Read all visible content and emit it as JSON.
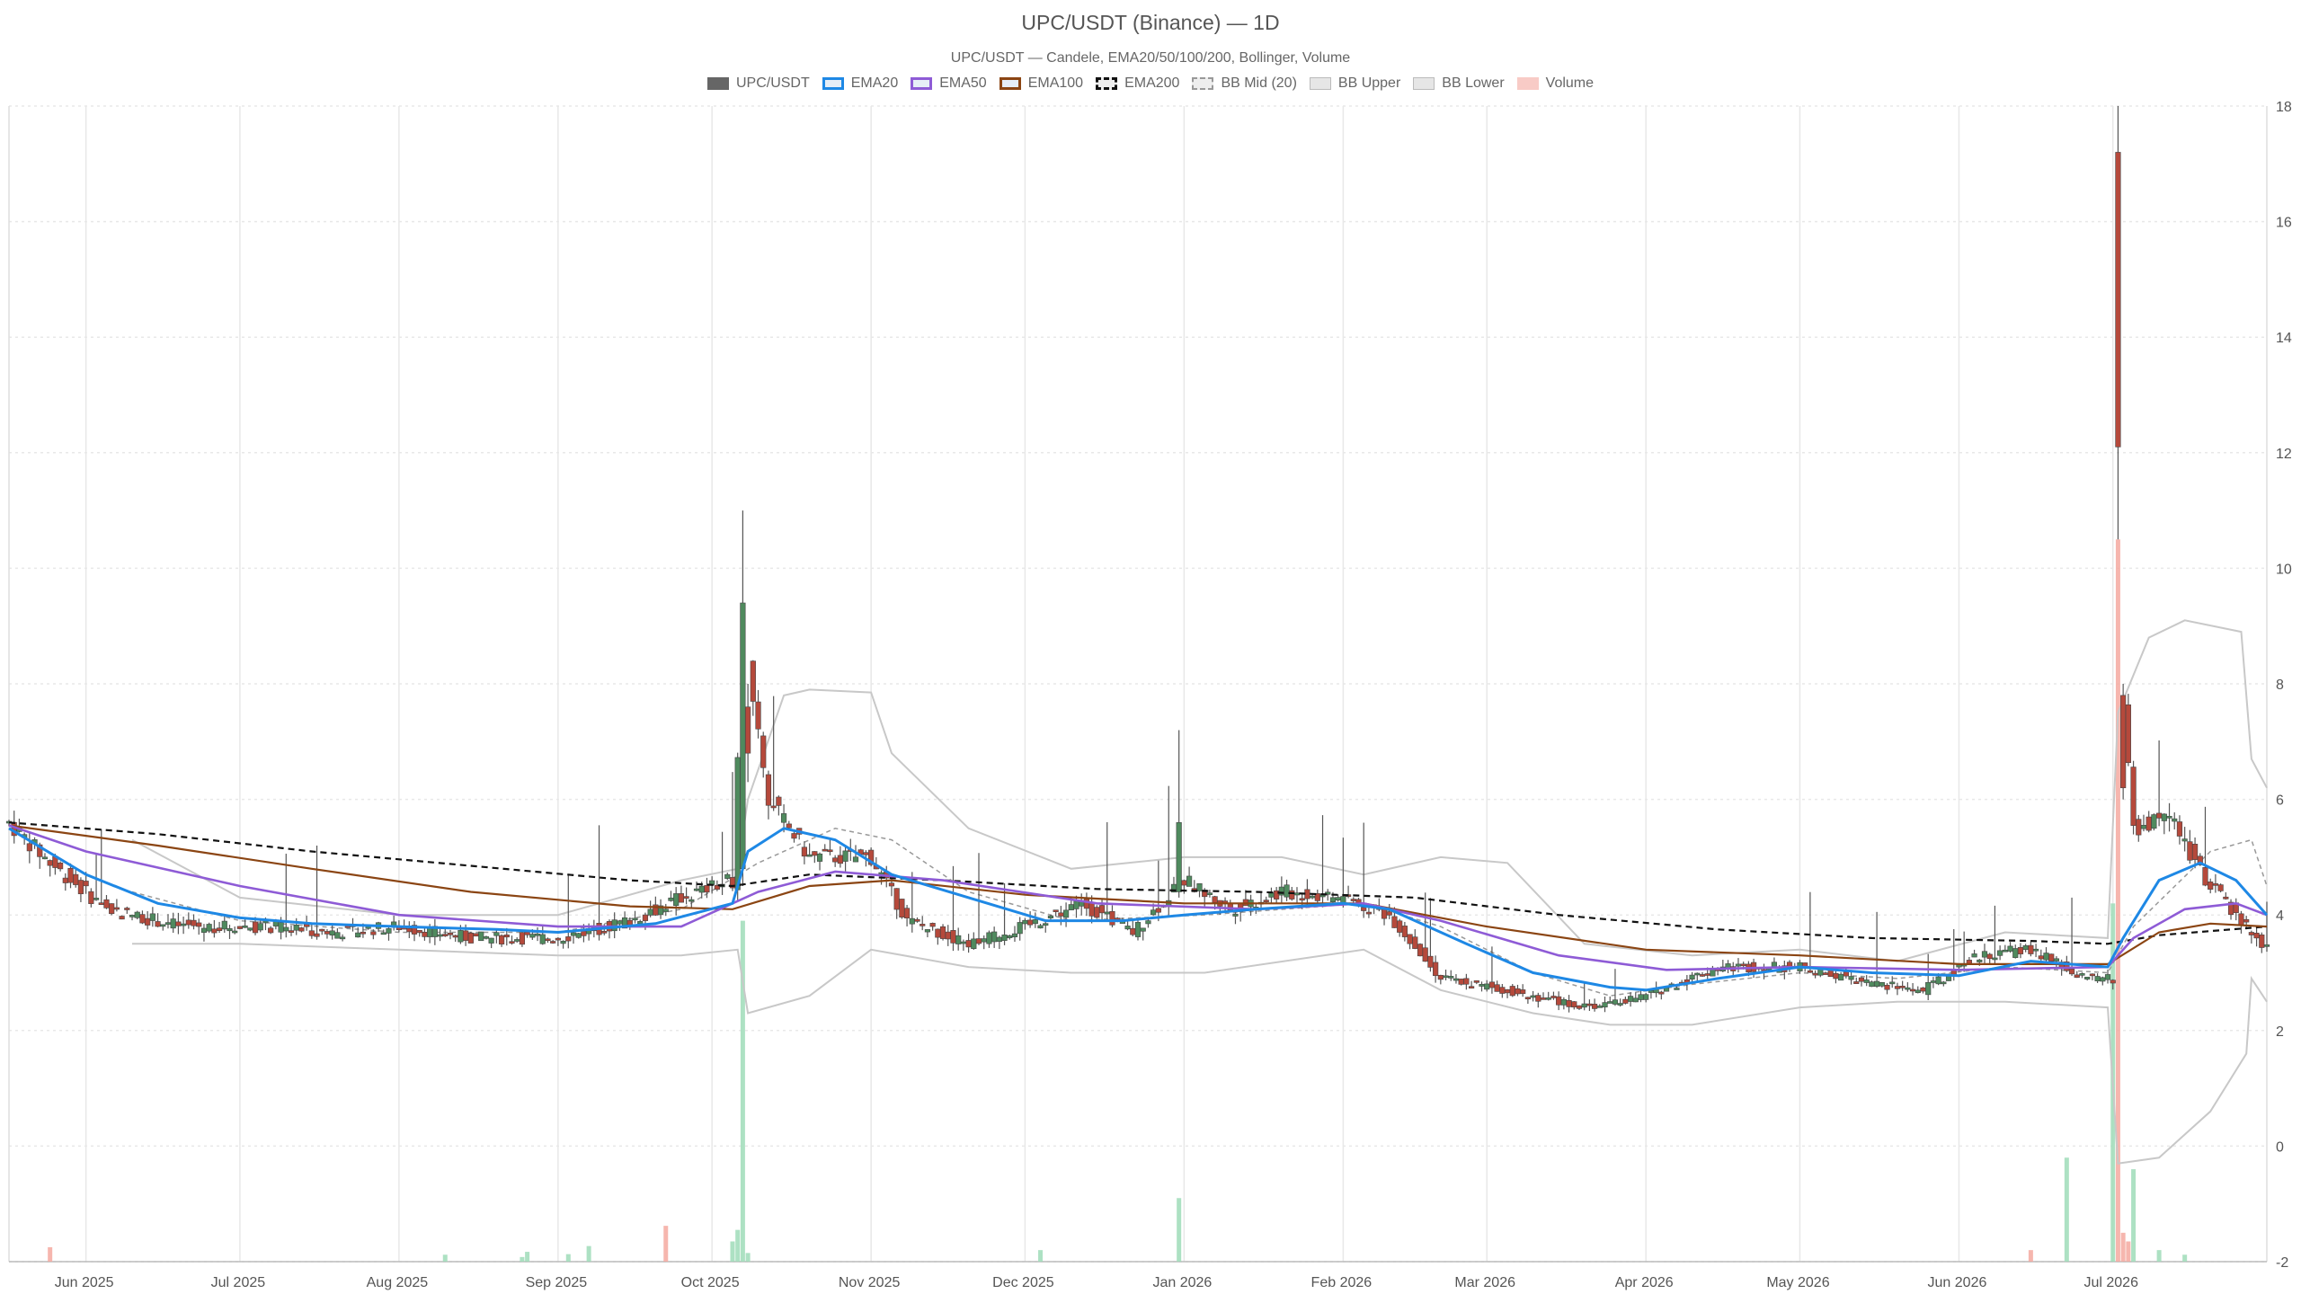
{
  "chart_data": {
    "type": "candlestick",
    "title": "UPC/USDT (Binance) — 1D",
    "subtitle": "UPC/USDT — Candele, EMA20/50/100/200, Bollinger, Volume",
    "x_axis": {
      "type": "date",
      "tick_labels": [
        "Jun 2025",
        "Jul 2025",
        "Aug 2025",
        "Sep 2025",
        "Oct 2025",
        "Nov 2025",
        "Dec 2025",
        "Jan 2026",
        "Feb 2026",
        "Mar 2026",
        "Apr 2026",
        "May 2026",
        "Jun 2026",
        "Jul 2026"
      ],
      "tick_dates": [
        "2025-06-01",
        "2025-07-01",
        "2025-08-01",
        "2025-09-01",
        "2025-10-01",
        "2025-11-01",
        "2025-12-01",
        "2026-01-01",
        "2026-02-01",
        "2026-03-01",
        "2026-04-01",
        "2026-05-01",
        "2026-06-01",
        "2026-07-01"
      ],
      "range": [
        "2025-05-17",
        "2026-07-31"
      ]
    },
    "y_axis": {
      "position": "right",
      "range": [
        -2,
        18
      ],
      "ticks": [
        -2,
        0,
        2,
        4,
        6,
        8,
        10,
        12,
        14,
        16,
        18
      ],
      "grid": true
    },
    "legend": {
      "placement": "top-center",
      "items": [
        {
          "label": "UPC/USDT",
          "kind": "candle",
          "color": "#666666"
        },
        {
          "label": "EMA20",
          "kind": "line",
          "color": "#1e88e5"
        },
        {
          "label": "EMA50",
          "kind": "line",
          "color": "#8e5bd6"
        },
        {
          "label": "EMA100",
          "kind": "line",
          "color": "#8b4513"
        },
        {
          "label": "EMA200",
          "kind": "dashed",
          "color": "#111111"
        },
        {
          "label": "BB Mid (20)",
          "kind": "dotted",
          "color": "#999999"
        },
        {
          "label": "BB Upper",
          "kind": "band",
          "color": "#bbbbbb"
        },
        {
          "label": "BB Lower",
          "kind": "band",
          "color": "#bbbbbb"
        },
        {
          "label": "Volume",
          "kind": "bar",
          "color": "#f4a9a0"
        }
      ]
    },
    "colors": {
      "candle_up": "#4f8a5e",
      "candle_down": "#b5493b",
      "wick": "#555555",
      "ema20": "#1e88e5",
      "ema50": "#8e5bd6",
      "ema100": "#8b4513",
      "ema200": "#111111",
      "bb_mid": "#999999",
      "bb_band": "#c8c8c8",
      "volume_up": "#9fdcb8",
      "volume_down": "#f4a9a0",
      "grid": "#e8e8e8"
    },
    "price_points": [
      [
        "2025-05-17",
        5.6
      ],
      [
        "2025-05-25",
        4.9
      ],
      [
        "2025-06-05",
        4.1
      ],
      [
        "2025-06-20",
        3.8
      ],
      [
        "2025-07-05",
        3.8
      ],
      [
        "2025-07-20",
        3.7
      ],
      [
        "2025-08-01",
        3.8
      ],
      [
        "2025-08-15",
        3.6
      ],
      [
        "2025-09-01",
        3.6
      ],
      [
        "2025-09-15",
        3.9
      ],
      [
        "2025-09-25",
        4.3
      ],
      [
        "2025-10-05",
        4.6
      ],
      [
        "2025-10-07",
        9.0
      ],
      [
        "2025-10-12",
        6.0
      ],
      [
        "2025-10-20",
        5.0
      ],
      [
        "2025-11-01",
        5.0
      ],
      [
        "2025-11-08",
        3.9
      ],
      [
        "2025-11-20",
        3.5
      ],
      [
        "2025-12-01",
        3.8
      ],
      [
        "2025-12-12",
        4.2
      ],
      [
        "2025-12-22",
        3.7
      ],
      [
        "2026-01-01",
        4.6
      ],
      [
        "2026-01-10",
        4.1
      ],
      [
        "2026-01-20",
        4.4
      ],
      [
        "2026-02-01",
        4.3
      ],
      [
        "2026-02-10",
        4.0
      ],
      [
        "2026-02-20",
        2.9
      ],
      [
        "2026-03-05",
        2.7
      ],
      [
        "2026-03-20",
        2.4
      ],
      [
        "2026-04-01",
        2.6
      ],
      [
        "2026-04-15",
        3.1
      ],
      [
        "2026-05-01",
        3.1
      ],
      [
        "2026-05-15",
        2.8
      ],
      [
        "2026-05-25",
        2.7
      ],
      [
        "2026-06-05",
        3.3
      ],
      [
        "2026-06-15",
        3.4
      ],
      [
        "2026-06-25",
        2.9
      ],
      [
        "2026-07-01",
        2.9
      ],
      [
        "2026-07-02",
        12.0
      ],
      [
        "2026-07-03",
        7.5
      ],
      [
        "2026-07-05",
        5.5
      ],
      [
        "2026-07-12",
        5.7
      ],
      [
        "2026-07-20",
        4.5
      ],
      [
        "2026-07-31",
        3.4
      ]
    ],
    "notable_candles": [
      {
        "date": "2025-10-07",
        "open": 4.8,
        "high": 11.0,
        "low": 4.5,
        "close": 9.4
      },
      {
        "date": "2025-10-08",
        "open": 7.6,
        "high": 8.0,
        "low": 6.3,
        "close": 6.8
      },
      {
        "date": "2025-12-31",
        "open": 4.4,
        "high": 7.2,
        "low": 4.3,
        "close": 5.6
      },
      {
        "date": "2026-07-02",
        "open": 17.2,
        "high": 18.0,
        "low": 10.5,
        "close": 12.1
      },
      {
        "date": "2026-07-03",
        "open": 7.8,
        "high": 8.0,
        "low": 6.0,
        "close": 6.2
      }
    ],
    "ema20": [
      [
        "2025-05-17",
        5.5
      ],
      [
        "2025-06-01",
        4.7
      ],
      [
        "2025-06-15",
        4.2
      ],
      [
        "2025-07-01",
        3.95
      ],
      [
        "2025-07-15",
        3.85
      ],
      [
        "2025-08-01",
        3.8
      ],
      [
        "2025-08-20",
        3.75
      ],
      [
        "2025-09-01",
        3.7
      ],
      [
        "2025-09-20",
        3.85
      ],
      [
        "2025-10-05",
        4.2
      ],
      [
        "2025-10-08",
        5.1
      ],
      [
        "2025-10-15",
        5.5
      ],
      [
        "2025-10-25",
        5.3
      ],
      [
        "2025-11-05",
        4.7
      ],
      [
        "2025-11-20",
        4.3
      ],
      [
        "2025-12-05",
        3.9
      ],
      [
        "2025-12-20",
        3.9
      ],
      [
        "2026-01-01",
        4.0
      ],
      [
        "2026-01-15",
        4.1
      ],
      [
        "2026-02-01",
        4.2
      ],
      [
        "2026-02-10",
        4.1
      ],
      [
        "2026-02-25",
        3.5
      ],
      [
        "2026-03-10",
        3.0
      ],
      [
        "2026-03-25",
        2.75
      ],
      [
        "2026-04-01",
        2.7
      ],
      [
        "2026-04-15",
        2.9
      ],
      [
        "2026-05-01",
        3.1
      ],
      [
        "2026-05-15",
        3.0
      ],
      [
        "2026-06-01",
        2.95
      ],
      [
        "2026-06-15",
        3.2
      ],
      [
        "2026-06-30",
        3.1
      ],
      [
        "2026-07-03",
        3.6
      ],
      [
        "2026-07-10",
        4.6
      ],
      [
        "2026-07-18",
        4.9
      ],
      [
        "2026-07-25",
        4.6
      ],
      [
        "2026-07-31",
        4.0
      ]
    ],
    "ema50": [
      [
        "2025-05-17",
        5.55
      ],
      [
        "2025-06-01",
        5.1
      ],
      [
        "2025-07-01",
        4.5
      ],
      [
        "2025-08-01",
        4.0
      ],
      [
        "2025-09-01",
        3.8
      ],
      [
        "2025-09-25",
        3.8
      ],
      [
        "2025-10-10",
        4.4
      ],
      [
        "2025-10-25",
        4.75
      ],
      [
        "2025-11-15",
        4.6
      ],
      [
        "2025-12-15",
        4.2
      ],
      [
        "2026-01-15",
        4.1
      ],
      [
        "2026-02-05",
        4.2
      ],
      [
        "2026-02-20",
        3.9
      ],
      [
        "2026-03-15",
        3.3
      ],
      [
        "2026-04-05",
        3.05
      ],
      [
        "2026-05-01",
        3.1
      ],
      [
        "2026-06-01",
        3.05
      ],
      [
        "2026-06-30",
        3.1
      ],
      [
        "2026-07-05",
        3.6
      ],
      [
        "2026-07-15",
        4.1
      ],
      [
        "2026-07-25",
        4.2
      ],
      [
        "2026-07-31",
        4.0
      ]
    ],
    "ema100": [
      [
        "2025-05-17",
        5.55
      ],
      [
        "2025-06-15",
        5.2
      ],
      [
        "2025-07-15",
        4.8
      ],
      [
        "2025-08-15",
        4.4
      ],
      [
        "2025-09-15",
        4.15
      ],
      [
        "2025-10-05",
        4.1
      ],
      [
        "2025-10-20",
        4.5
      ],
      [
        "2025-11-05",
        4.6
      ],
      [
        "2025-12-01",
        4.35
      ],
      [
        "2026-01-01",
        4.2
      ],
      [
        "2026-02-05",
        4.2
      ],
      [
        "2026-03-01",
        3.8
      ],
      [
        "2026-04-01",
        3.4
      ],
      [
        "2026-05-01",
        3.3
      ],
      [
        "2026-06-01",
        3.15
      ],
      [
        "2026-06-30",
        3.15
      ],
      [
        "2026-07-10",
        3.7
      ],
      [
        "2026-07-20",
        3.85
      ],
      [
        "2026-07-31",
        3.8
      ]
    ],
    "ema200": [
      [
        "2025-05-17",
        5.6
      ],
      [
        "2025-06-15",
        5.4
      ],
      [
        "2025-07-15",
        5.1
      ],
      [
        "2025-08-15",
        4.85
      ],
      [
        "2025-09-15",
        4.6
      ],
      [
        "2025-10-05",
        4.5
      ],
      [
        "2025-10-20",
        4.7
      ],
      [
        "2025-11-15",
        4.6
      ],
      [
        "2025-12-15",
        4.45
      ],
      [
        "2026-01-15",
        4.4
      ],
      [
        "2026-02-15",
        4.3
      ],
      [
        "2026-03-15",
        4.0
      ],
      [
        "2026-04-15",
        3.75
      ],
      [
        "2026-05-15",
        3.6
      ],
      [
        "2026-06-15",
        3.55
      ],
      [
        "2026-06-30",
        3.5
      ],
      [
        "2026-07-10",
        3.65
      ],
      [
        "2026-07-31",
        3.8
      ]
    ],
    "bb_mid": [
      [
        "2025-06-10",
        4.4
      ],
      [
        "2025-07-01",
        3.9
      ],
      [
        "2025-08-01",
        3.7
      ],
      [
        "2025-09-01",
        3.7
      ],
      [
        "2025-09-25",
        4.1
      ],
      [
        "2025-10-10",
        4.9
      ],
      [
        "2025-10-25",
        5.5
      ],
      [
        "2025-11-05",
        5.3
      ],
      [
        "2025-11-20",
        4.4
      ],
      [
        "2025-12-10",
        3.9
      ],
      [
        "2026-01-05",
        4.0
      ],
      [
        "2026-02-05",
        4.2
      ],
      [
        "2026-02-20",
        3.8
      ],
      [
        "2026-03-10",
        3.0
      ],
      [
        "2026-03-25",
        2.6
      ],
      [
        "2026-04-10",
        2.8
      ],
      [
        "2026-05-01",
        3.0
      ],
      [
        "2026-05-20",
        2.9
      ],
      [
        "2026-06-10",
        3.1
      ],
      [
        "2026-06-30",
        3.0
      ],
      [
        "2026-07-05",
        3.8
      ],
      [
        "2026-07-20",
        5.1
      ],
      [
        "2026-07-28",
        5.3
      ],
      [
        "2026-07-31",
        4.5
      ]
    ],
    "bb_upper": [
      [
        "2025-06-10",
        5.3
      ],
      [
        "2025-07-01",
        4.3
      ],
      [
        "2025-08-01",
        4.0
      ],
      [
        "2025-09-01",
        4.0
      ],
      [
        "2025-09-25",
        4.6
      ],
      [
        "2025-10-06",
        4.8
      ],
      [
        "2025-10-08",
        6.0
      ],
      [
        "2025-10-15",
        7.8
      ],
      [
        "2025-10-20",
        7.9
      ],
      [
        "2025-11-01",
        7.85
      ],
      [
        "2025-11-05",
        6.8
      ],
      [
        "2025-11-20",
        5.5
      ],
      [
        "2025-12-10",
        4.8
      ],
      [
        "2026-01-01",
        5.0
      ],
      [
        "2026-01-20",
        5.0
      ],
      [
        "2026-02-05",
        4.7
      ],
      [
        "2026-02-20",
        5.0
      ],
      [
        "2026-03-05",
        4.9
      ],
      [
        "2026-03-20",
        3.5
      ],
      [
        "2026-04-10",
        3.3
      ],
      [
        "2026-05-01",
        3.4
      ],
      [
        "2026-05-20",
        3.2
      ],
      [
        "2026-06-10",
        3.7
      ],
      [
        "2026-06-30",
        3.6
      ],
      [
        "2026-07-02",
        7.5
      ],
      [
        "2026-07-08",
        8.8
      ],
      [
        "2026-07-15",
        9.1
      ],
      [
        "2026-07-26",
        8.9
      ],
      [
        "2026-07-28",
        6.7
      ],
      [
        "2026-07-31",
        6.2
      ]
    ],
    "bb_lower": [
      [
        "2025-06-10",
        3.5
      ],
      [
        "2025-07-01",
        3.5
      ],
      [
        "2025-08-01",
        3.4
      ],
      [
        "2025-09-01",
        3.3
      ],
      [
        "2025-09-25",
        3.3
      ],
      [
        "2025-10-06",
        3.4
      ],
      [
        "2025-10-08",
        2.3
      ],
      [
        "2025-10-20",
        2.6
      ],
      [
        "2025-11-01",
        3.4
      ],
      [
        "2025-11-20",
        3.1
      ],
      [
        "2025-12-10",
        3.0
      ],
      [
        "2026-01-05",
        3.0
      ],
      [
        "2026-02-05",
        3.4
      ],
      [
        "2026-02-20",
        2.7
      ],
      [
        "2026-03-10",
        2.3
      ],
      [
        "2026-03-25",
        2.1
      ],
      [
        "2026-04-10",
        2.1
      ],
      [
        "2026-05-01",
        2.4
      ],
      [
        "2026-05-20",
        2.5
      ],
      [
        "2026-06-10",
        2.5
      ],
      [
        "2026-06-30",
        2.4
      ],
      [
        "2026-07-02",
        -0.3
      ],
      [
        "2026-07-10",
        -0.2
      ],
      [
        "2026-07-20",
        0.6
      ],
      [
        "2026-07-27",
        1.6
      ],
      [
        "2026-07-28",
        2.9
      ],
      [
        "2026-07-31",
        2.5
      ]
    ],
    "volume": [
      {
        "date": "2025-05-25",
        "value": 0.25,
        "dir": "down"
      },
      {
        "date": "2025-08-10",
        "value": 0.12,
        "dir": "up"
      },
      {
        "date": "2025-08-25",
        "value": 0.08,
        "dir": "up"
      },
      {
        "date": "2025-08-26",
        "value": 0.17,
        "dir": "up"
      },
      {
        "date": "2025-09-03",
        "value": 0.13,
        "dir": "up"
      },
      {
        "date": "2025-09-07",
        "value": 0.27,
        "dir": "up"
      },
      {
        "date": "2025-09-22",
        "value": 0.62,
        "dir": "down"
      },
      {
        "date": "2025-10-05",
        "value": 0.35,
        "dir": "up"
      },
      {
        "date": "2025-10-06",
        "value": 0.55,
        "dir": "up"
      },
      {
        "date": "2025-10-07",
        "value": 5.9,
        "dir": "up"
      },
      {
        "date": "2025-10-08",
        "value": 0.15,
        "dir": "up"
      },
      {
        "date": "2025-12-04",
        "value": 0.2,
        "dir": "up"
      },
      {
        "date": "2025-12-31",
        "value": 1.1,
        "dir": "up"
      },
      {
        "date": "2026-06-15",
        "value": 0.2,
        "dir": "down"
      },
      {
        "date": "2026-06-22",
        "value": 1.8,
        "dir": "up"
      },
      {
        "date": "2026-07-01",
        "value": 6.2,
        "dir": "up"
      },
      {
        "date": "2026-07-02",
        "value": 12.5,
        "dir": "down"
      },
      {
        "date": "2026-07-03",
        "value": 0.5,
        "dir": "down"
      },
      {
        "date": "2026-07-04",
        "value": 0.35,
        "dir": "down"
      },
      {
        "date": "2026-07-05",
        "value": 1.6,
        "dir": "up"
      },
      {
        "date": "2026-07-10",
        "value": 0.2,
        "dir": "up"
      },
      {
        "date": "2026-07-15",
        "value": 0.12,
        "dir": "up"
      }
    ]
  }
}
